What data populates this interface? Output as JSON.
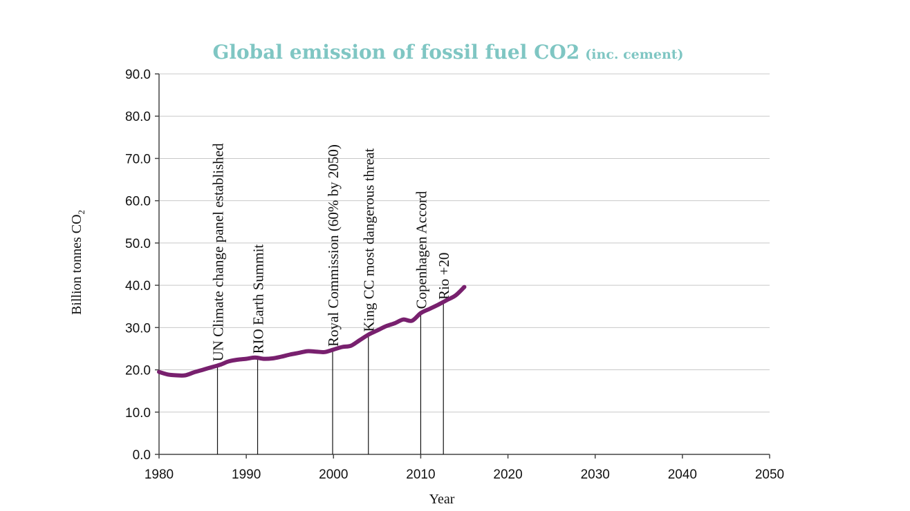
{
  "chart_data": {
    "type": "line",
    "title": "Global emission of fossil fuel CO2",
    "subtitle": "(inc. cement)",
    "xlabel": "Year",
    "ylabel_main": "Billion tonnes CO",
    "ylabel_sub": "2",
    "xlim": [
      1980,
      2050
    ],
    "ylim": [
      0,
      90
    ],
    "xticks": [
      "1980",
      "1990",
      "2000",
      "2010",
      "2020",
      "2030",
      "2040",
      "2050"
    ],
    "yticks": [
      "0.0",
      "10.0",
      "20.0",
      "30.0",
      "40.0",
      "50.0",
      "60.0",
      "70.0",
      "80.0",
      "90.0"
    ],
    "grid": "horizontal",
    "series": [
      {
        "color": "#78206e",
        "x": [
          1980,
          1981,
          1982,
          1983,
          1984,
          1985,
          1986,
          1987,
          1988,
          1989,
          1990,
          1991,
          1992,
          1993,
          1994,
          1995,
          1996,
          1997,
          1998,
          1999,
          2000,
          2001,
          2002,
          2003,
          2004,
          2005,
          2006,
          2007,
          2008,
          2009,
          2010,
          2011,
          2012,
          2013,
          2014,
          2015
        ],
        "y": [
          19.5,
          18.9,
          18.7,
          18.7,
          19.4,
          20.0,
          20.6,
          21.2,
          22.0,
          22.4,
          22.6,
          22.9,
          22.6,
          22.7,
          23.1,
          23.6,
          24.0,
          24.4,
          24.3,
          24.2,
          24.8,
          25.4,
          25.7,
          27.0,
          28.3,
          29.3,
          30.3,
          31.0,
          31.9,
          31.6,
          33.4,
          34.4,
          35.4,
          36.5,
          37.6,
          39.6
        ]
      }
    ],
    "events": [
      {
        "label": "UN Climate change panel established",
        "year": 1986.7,
        "value": 21.0
      },
      {
        "label": "RIO Earth Summit",
        "year": 1991.3,
        "value": 22.8
      },
      {
        "label": "Royal Commission (60% by 2050)",
        "year": 1999.9,
        "value": 24.5
      },
      {
        "label": "King CC most dangerous threat",
        "year": 2004.0,
        "value": 28.0
      },
      {
        "label": "Copenhagen Accord",
        "year": 2010.0,
        "value": 33.4
      },
      {
        "label": "Rio +20",
        "year": 2012.6,
        "value": 35.6
      }
    ]
  }
}
